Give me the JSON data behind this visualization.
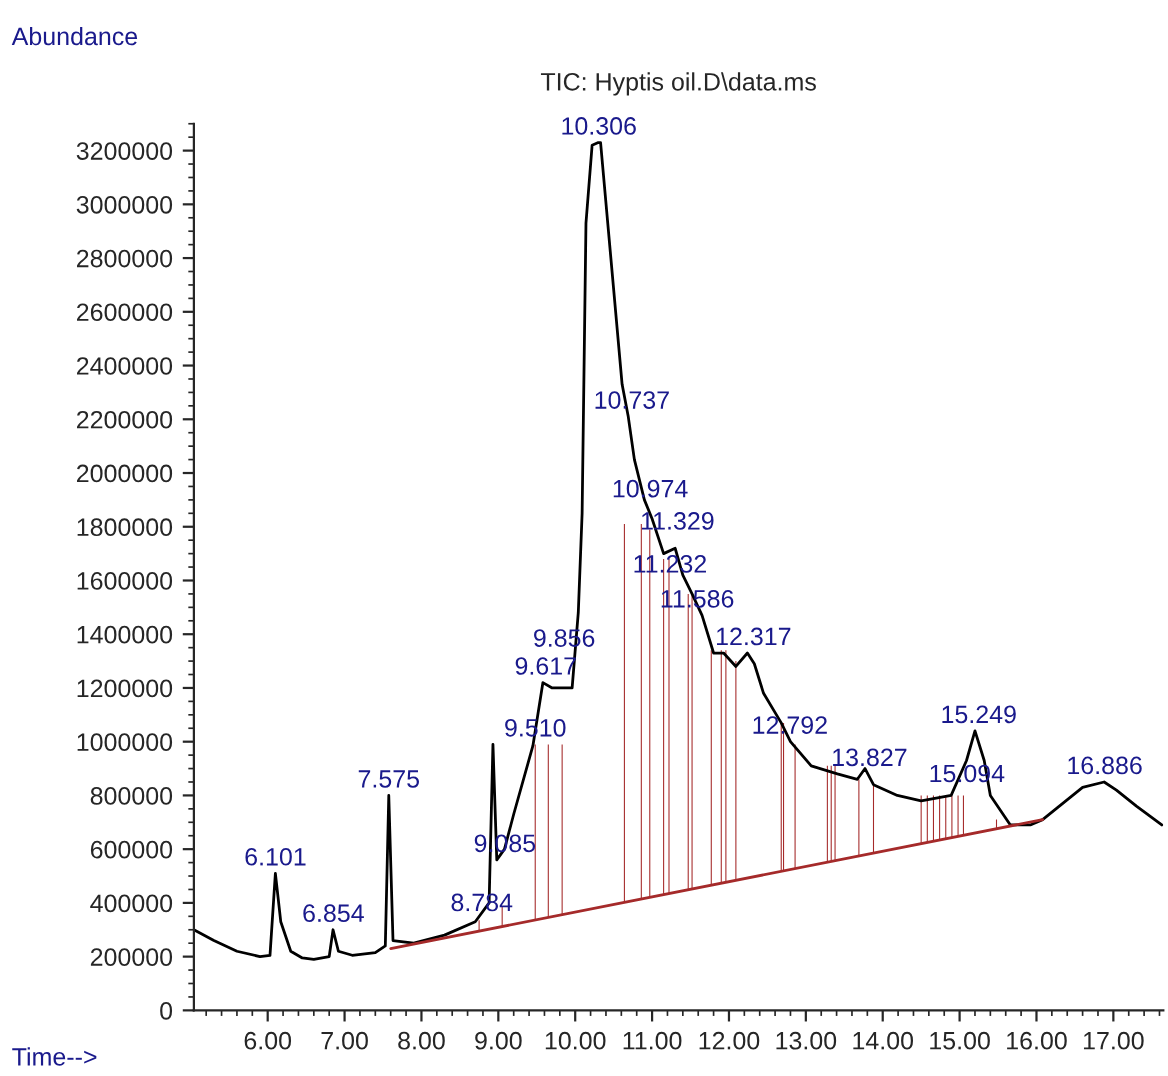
{
  "chart_data": {
    "type": "line",
    "title": "TIC: Hyptis oil.D\\data.ms",
    "xlabel": "Time-->",
    "ylabel": "Abundance",
    "xlim": [
      5.04,
      17.65
    ],
    "ylim": [
      0,
      3300000
    ],
    "xticks": [
      {
        "value": 6,
        "label": "6.00"
      },
      {
        "value": 7,
        "label": "7.00"
      },
      {
        "value": 8,
        "label": "8.00"
      },
      {
        "value": 9,
        "label": "9.00"
      },
      {
        "value": 10,
        "label": "10.00"
      },
      {
        "value": 11,
        "label": "11.00"
      },
      {
        "value": 12,
        "label": "12.00"
      },
      {
        "value": 13,
        "label": "13.00"
      },
      {
        "value": 14,
        "label": "14.00"
      },
      {
        "value": 15,
        "label": "15.00"
      },
      {
        "value": 16,
        "label": "16.00"
      },
      {
        "value": 17,
        "label": "17.00"
      }
    ],
    "yticks": [
      0,
      200000,
      400000,
      600000,
      800000,
      1000000,
      1200000,
      1400000,
      1600000,
      1800000,
      2000000,
      2200000,
      2400000,
      2600000,
      2800000,
      3000000,
      3200000
    ],
    "grid": false,
    "legend": false,
    "series": [
      {
        "color": "#000000",
        "x": [
          5.04,
          5.3,
          5.6,
          5.9,
          6.03,
          6.1,
          6.17,
          6.3,
          6.45,
          6.6,
          6.8,
          6.85,
          6.92,
          7.1,
          7.4,
          7.53,
          7.575,
          7.63,
          7.9,
          8.3,
          8.7,
          8.88,
          8.93,
          8.98,
          9.08,
          9.2,
          9.45,
          9.58,
          9.7,
          9.96,
          10.04,
          10.09,
          10.14,
          10.22,
          10.3,
          10.33,
          10.61,
          10.69,
          10.77,
          10.9,
          11.0,
          11.15,
          11.3,
          11.4,
          11.52,
          11.65,
          11.8,
          11.93,
          12.09,
          12.24,
          12.33,
          12.45,
          12.68,
          12.8,
          13.07,
          13.41,
          13.67,
          13.77,
          13.88,
          14.19,
          14.5,
          14.89,
          15.09,
          15.2,
          15.32,
          15.4,
          15.66,
          15.92,
          16.08,
          16.6,
          16.88,
          17.04,
          17.3,
          17.63
        ],
        "values": [
          300000,
          260000,
          220000,
          200000,
          205000,
          510000,
          330000,
          220000,
          195000,
          190000,
          200000,
          300000,
          220000,
          205000,
          215000,
          240000,
          800000,
          260000,
          250000,
          280000,
          330000,
          400000,
          990000,
          560000,
          600000,
          730000,
          985000,
          1220000,
          1200000,
          1200000,
          1480000,
          1850000,
          2930000,
          3220000,
          3230000,
          3230000,
          2330000,
          2210000,
          2050000,
          1900000,
          1830000,
          1700000,
          1720000,
          1620000,
          1550000,
          1470000,
          1330000,
          1330000,
          1280000,
          1330000,
          1290000,
          1180000,
          1070000,
          1000000,
          910000,
          880000,
          860000,
          900000,
          840000,
          800000,
          780000,
          800000,
          930000,
          1040000,
          930000,
          800000,
          690000,
          690000,
          710000,
          830000,
          850000,
          820000,
          760000,
          690000
        ]
      },
      {
        "type": "line",
        "color": "#a52a2a",
        "x": [
          7.6,
          16.08
        ],
        "values": [
          230000,
          710000
        ]
      },
      {
        "type": "bar",
        "color": "#a52a2a",
        "x": [
          8.75,
          9.05,
          9.48,
          9.65,
          9.83,
          10.64,
          10.86,
          10.97,
          11.15,
          11.22,
          11.47,
          11.52,
          11.77,
          11.9,
          11.96,
          12.09,
          12.68,
          12.71,
          12.86,
          13.28,
          13.33,
          13.38,
          13.69,
          13.88,
          14.5,
          14.58,
          14.66,
          14.74,
          14.82,
          14.9,
          14.98,
          15.05,
          15.48
        ],
        "base": [
          295000,
          312000,
          336000,
          346000,
          356000,
          402000,
          414000,
          420000,
          431000,
          435000,
          449000,
          451000,
          466000,
          473000,
          476000,
          484000,
          517000,
          519000,
          527000,
          551000,
          554000,
          557000,
          574000,
          585000,
          620000,
          624000,
          629000,
          633000,
          638000,
          642000,
          647000,
          651000,
          675000
        ],
        "values": [
          40000,
          76000,
          654000,
          644000,
          634000,
          1408000,
          1396000,
          1370000,
          1249000,
          1245000,
          1101000,
          1099000,
          874000,
          867000,
          864000,
          816000,
          553000,
          551000,
          463000,
          359000,
          356000,
          353000,
          286000,
          251000,
          180000,
          176000,
          171000,
          167000,
          162000,
          158000,
          153000,
          149000,
          35000
        ]
      }
    ],
    "annotations": [
      {
        "text": "6.101",
        "x": 6.101,
        "y": 510000
      },
      {
        "text": "6.854",
        "x": 6.854,
        "y": 300000
      },
      {
        "text": "7.575",
        "x": 7.575,
        "y": 800000
      },
      {
        "text": "8.784",
        "x": 8.784,
        "y": 340000
      },
      {
        "text": "9.085",
        "x": 9.085,
        "y": 560000
      },
      {
        "text": "9.510",
        "x": 9.48,
        "y": 990000
      },
      {
        "text": "9.617",
        "x": 9.617,
        "y": 1220000
      },
      {
        "text": "9.856",
        "x": 9.856,
        "y": 1200000
      },
      {
        "text": "10.306",
        "x": 10.306,
        "y": 3230000
      },
      {
        "text": "10.737",
        "x": 10.737,
        "y": 2210000
      },
      {
        "text": "10.974",
        "x": 10.974,
        "y": 1880000
      },
      {
        "text": "11.329",
        "x": 11.329,
        "y": 1760000
      },
      {
        "text": "11.232",
        "x": 11.232,
        "y": 1600000
      },
      {
        "text": "11.586",
        "x": 11.586,
        "y": 1470000
      },
      {
        "text": "12.317",
        "x": 12.317,
        "y": 1330000
      },
      {
        "text": "12.792",
        "x": 12.792,
        "y": 1000000
      },
      {
        "text": "13.827",
        "x": 13.827,
        "y": 880000
      },
      {
        "text": "15.249",
        "x": 15.249,
        "y": 1040000
      },
      {
        "text": "15.094",
        "x": 15.094,
        "y": 820000
      },
      {
        "text": "16.886",
        "x": 16.886,
        "y": 850000
      }
    ]
  }
}
